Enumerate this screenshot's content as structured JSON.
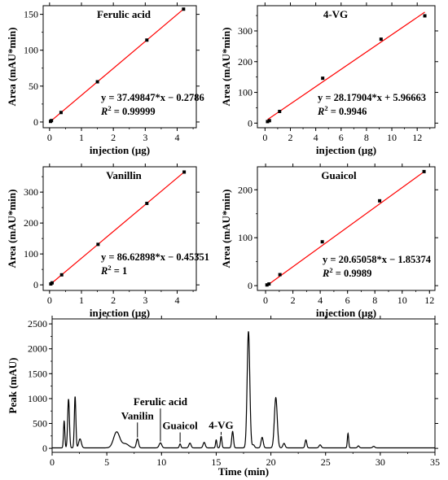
{
  "chart_data": [
    {
      "type": "scatter",
      "title": "Ferulic acid",
      "xlabel": "injection (μg)",
      "ylabel": "Area (mAU*min)",
      "xlim": [
        -0.2,
        4.6
      ],
      "ylim": [
        -8,
        162
      ],
      "xticks": [
        "0",
        "1",
        "2",
        "3",
        "4"
      ],
      "yticks": [
        "0",
        "50",
        "100",
        "150"
      ],
      "points": [
        [
          0.03,
          0.8
        ],
        [
          0.06,
          2.0
        ],
        [
          0.36,
          13.2
        ],
        [
          1.5,
          56.0
        ],
        [
          3.05,
          114.1
        ],
        [
          4.2,
          157.2
        ]
      ],
      "fit": {
        "slope": 37.49847,
        "intercept": -0.2786
      },
      "equation": "y = 37.49847*x − 0.2786",
      "r2_value": " = 0.99999",
      "series_color": "#000000",
      "fit_color": "#ff0000"
    },
    {
      "type": "scatter",
      "title": "4-VG",
      "xlabel": "injection (μg)",
      "ylabel": "Area (mAU*min)",
      "xlim": [
        -0.6,
        13.4
      ],
      "ylim": [
        -15,
        382
      ],
      "xticks": [
        "0",
        "2",
        "4",
        "6",
        "8",
        "10",
        "12"
      ],
      "yticks": [
        "0",
        "100",
        "200",
        "300"
      ],
      "points": [
        [
          0.2,
          5.0
        ],
        [
          0.35,
          8.0
        ],
        [
          1.15,
          38.0
        ],
        [
          4.55,
          146.0
        ],
        [
          9.15,
          273.0
        ],
        [
          12.6,
          349.0
        ]
      ],
      "fit": {
        "slope": 28.17904,
        "intercept": 5.96663
      },
      "equation": "y = 28.17904*x + 5.96663",
      "r2_value": " = 0.9946",
      "series_color": "#000000",
      "fit_color": "#ff0000"
    },
    {
      "type": "scatter",
      "title": "Vanillin",
      "xlabel": "injection (μg)",
      "ylabel": "Area (mAU*min)",
      "xlim": [
        -0.2,
        4.6
      ],
      "ylim": [
        -18,
        382
      ],
      "xticks": [
        "0",
        "1",
        "2",
        "3",
        "4"
      ],
      "yticks": [
        "0",
        "100",
        "200",
        "300"
      ],
      "points": [
        [
          0.04,
          3.0
        ],
        [
          0.08,
          6.5
        ],
        [
          0.38,
          32.5
        ],
        [
          1.52,
          131.0
        ],
        [
          3.05,
          263.5
        ],
        [
          4.22,
          365.0
        ]
      ],
      "fit": {
        "slope": 86.62898,
        "intercept": -0.45351
      },
      "equation": "y = 86.62898*x − 0.45351",
      "r2_value": " = 1",
      "series_color": "#000000",
      "fit_color": "#ff0000"
    },
    {
      "type": "scatter",
      "title": "Guaicol",
      "xlabel": "injection (μg)",
      "ylabel": "Area (mAU*min)",
      "xlim": [
        -0.6,
        12.4
      ],
      "ylim": [
        -10,
        248
      ],
      "xticks": [
        "0",
        "2",
        "4",
        "6",
        "8",
        "10",
        "12"
      ],
      "yticks": [
        "0",
        "100",
        "200"
      ],
      "points": [
        [
          0.1,
          1.5
        ],
        [
          0.25,
          3.5
        ],
        [
          1.05,
          23.0
        ],
        [
          4.15,
          91.5
        ],
        [
          8.35,
          177.0
        ],
        [
          11.6,
          238.0
        ]
      ],
      "fit": {
        "slope": 20.65058,
        "intercept": -1.85374
      },
      "equation": "y = 20.65058*x − 1.85374",
      "r2_value": " = 0.9989",
      "series_color": "#000000",
      "fit_color": "#ff0000"
    },
    {
      "type": "line",
      "xlabel": "Time (min)",
      "ylabel": "Peak (mAU)",
      "xlim": [
        0,
        35
      ],
      "ylim": [
        -80,
        2600
      ],
      "xticks": [
        "0",
        "5",
        "10",
        "15",
        "20",
        "25",
        "30",
        "35"
      ],
      "yticks": [
        "0",
        "500",
        "1000",
        "1500",
        "2000",
        "2500"
      ],
      "series_color": "#000000",
      "baseline": 10,
      "peaks": [
        {
          "x": 1.1,
          "h": 540,
          "w": 0.06
        },
        {
          "x": 1.5,
          "h": 980,
          "w": 0.08
        },
        {
          "x": 2.1,
          "h": 1030,
          "w": 0.07
        },
        {
          "x": 2.55,
          "h": 180,
          "w": 0.12
        },
        {
          "x": 5.9,
          "h": 320,
          "w": 0.28
        },
        {
          "x": 6.7,
          "h": 80,
          "w": 0.3
        },
        {
          "x": 7.8,
          "h": 180,
          "w": 0.1
        },
        {
          "x": 9.9,
          "h": 100,
          "w": 0.12
        },
        {
          "x": 11.7,
          "h": 80,
          "w": 0.07
        },
        {
          "x": 12.6,
          "h": 95,
          "w": 0.1
        },
        {
          "x": 13.9,
          "h": 110,
          "w": 0.1
        },
        {
          "x": 15.0,
          "h": 160,
          "w": 0.06
        },
        {
          "x": 15.45,
          "h": 230,
          "w": 0.07
        },
        {
          "x": 16.5,
          "h": 330,
          "w": 0.08
        },
        {
          "x": 17.95,
          "h": 2340,
          "w": 0.12
        },
        {
          "x": 18.4,
          "h": 60,
          "w": 0.1
        },
        {
          "x": 19.2,
          "h": 210,
          "w": 0.1
        },
        {
          "x": 20.45,
          "h": 1010,
          "w": 0.13
        },
        {
          "x": 21.2,
          "h": 90,
          "w": 0.1
        },
        {
          "x": 23.2,
          "h": 160,
          "w": 0.08
        },
        {
          "x": 24.5,
          "h": 60,
          "w": 0.1
        },
        {
          "x": 27.05,
          "h": 290,
          "w": 0.06
        },
        {
          "x": 28.0,
          "h": 40,
          "w": 0.08
        },
        {
          "x": 29.4,
          "h": 30,
          "w": 0.1
        }
      ],
      "annotations": [
        {
          "label": "Vanilin",
          "x": 7.8,
          "line_top": 520
        },
        {
          "label": "Ferulic acid",
          "x": 9.9,
          "line_top": 800
        },
        {
          "label": "Guaicol",
          "x": 11.7,
          "line_top": 320
        },
        {
          "label": "4-VG",
          "x": 15.45,
          "line_top": 330
        }
      ]
    }
  ]
}
